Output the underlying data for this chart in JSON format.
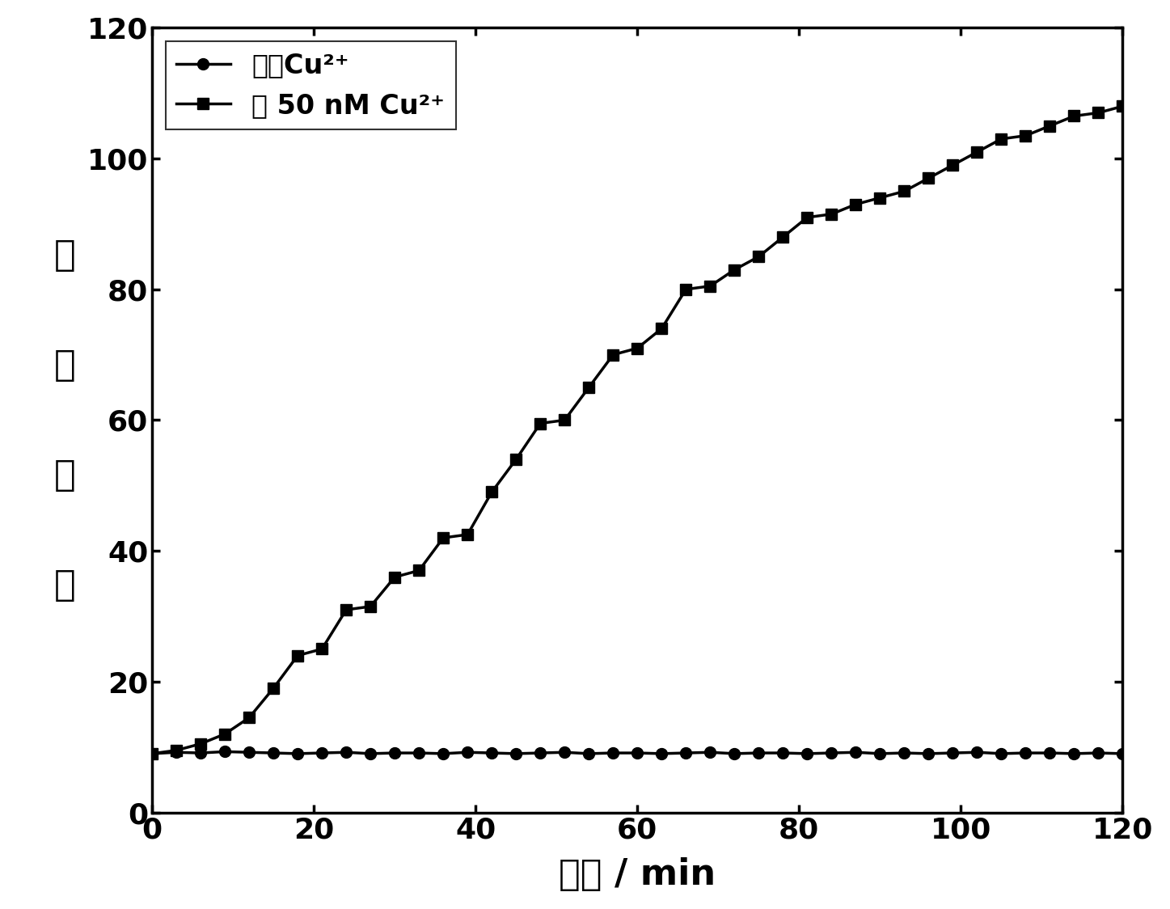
{
  "x_no_cu": [
    0,
    3,
    6,
    9,
    12,
    15,
    18,
    21,
    24,
    27,
    30,
    33,
    36,
    39,
    42,
    45,
    48,
    51,
    54,
    57,
    60,
    63,
    66,
    69,
    72,
    75,
    78,
    81,
    84,
    87,
    90,
    93,
    96,
    99,
    102,
    105,
    108,
    111,
    114,
    117,
    120
  ],
  "y_no_cu": [
    9,
    9.2,
    9.1,
    9.3,
    9.2,
    9.1,
    9.0,
    9.1,
    9.2,
    9.0,
    9.1,
    9.1,
    9.0,
    9.2,
    9.1,
    9.0,
    9.1,
    9.2,
    9.0,
    9.1,
    9.1,
    9.0,
    9.1,
    9.2,
    9.0,
    9.1,
    9.1,
    9.0,
    9.1,
    9.2,
    9.0,
    9.1,
    9.0,
    9.1,
    9.2,
    9.0,
    9.1,
    9.1,
    9.0,
    9.1,
    9.0
  ],
  "x_cu": [
    0,
    3,
    6,
    9,
    12,
    15,
    18,
    21,
    24,
    27,
    30,
    33,
    36,
    39,
    42,
    45,
    48,
    51,
    54,
    57,
    60,
    63,
    66,
    69,
    72,
    75,
    78,
    81,
    84,
    87,
    90,
    93,
    96,
    99,
    102,
    105,
    108,
    111,
    114,
    117,
    120
  ],
  "y_cu": [
    9,
    9.5,
    10.5,
    12,
    14.5,
    19,
    24,
    25,
    31,
    31.5,
    36,
    37,
    42,
    42.5,
    49,
    54,
    59.5,
    60,
    65,
    70,
    71,
    74,
    80,
    80.5,
    83,
    85,
    88,
    91,
    91.5,
    93,
    94,
    95,
    97,
    99,
    101,
    103,
    103.5,
    105,
    106.5,
    107,
    108
  ],
  "xlabel": "时间 / min",
  "ylabel_chars": [
    "荧",
    "光",
    "强",
    "度"
  ],
  "xlim": [
    0,
    120
  ],
  "ylim": [
    0,
    120
  ],
  "xticks": [
    0,
    20,
    40,
    60,
    80,
    100,
    120
  ],
  "yticks": [
    0,
    20,
    40,
    60,
    80,
    100,
    120
  ],
  "legend_no_cu": "不加Cu²⁺",
  "legend_cu": "加 50 nM Cu²⁺",
  "line_color": "#000000",
  "bg_color": "#ffffff",
  "plot_bg": "#ffffff",
  "linewidth": 2.5,
  "markersize_circle": 10,
  "markersize_square": 10,
  "xlabel_fontsize": 32,
  "ylabel_fontsize": 32,
  "tick_fontsize": 26,
  "legend_fontsize": 24
}
